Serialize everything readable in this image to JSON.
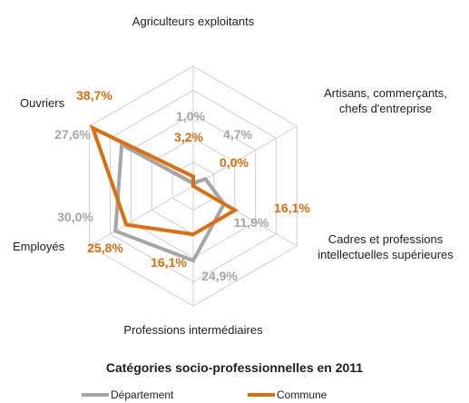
{
  "chart_data": {
    "type": "radar",
    "title": "Catégories socio-professionnelles en 2011",
    "categories": [
      "Agriculteurs exploitants",
      "Artisans, commerçants, chefs d'entreprise",
      "Cadres et professions intellectuelles supérieures",
      "Professions intermédiaires",
      "Employés",
      "Ouvriers"
    ],
    "series": [
      {
        "name": "Département",
        "color": "#a6a6a6",
        "values": [
          1.0,
          4.7,
          11.9,
          24.9,
          30.0,
          27.6
        ],
        "labels": [
          "1,0%",
          "4,7%",
          "11,9%",
          "24,9%",
          "30,0%",
          "27,6%"
        ]
      },
      {
        "name": "Commune",
        "color": "#e36c0a",
        "values": [
          3.2,
          0.0,
          16.1,
          16.1,
          25.8,
          38.7
        ],
        "labels": [
          "3,2%",
          "0,0%",
          "16,1%",
          "16,1%",
          "25,8%",
          "38,7%"
        ]
      }
    ],
    "rmax": 40,
    "grid_rings": 5,
    "grid": true,
    "legend_position": "bottom"
  }
}
